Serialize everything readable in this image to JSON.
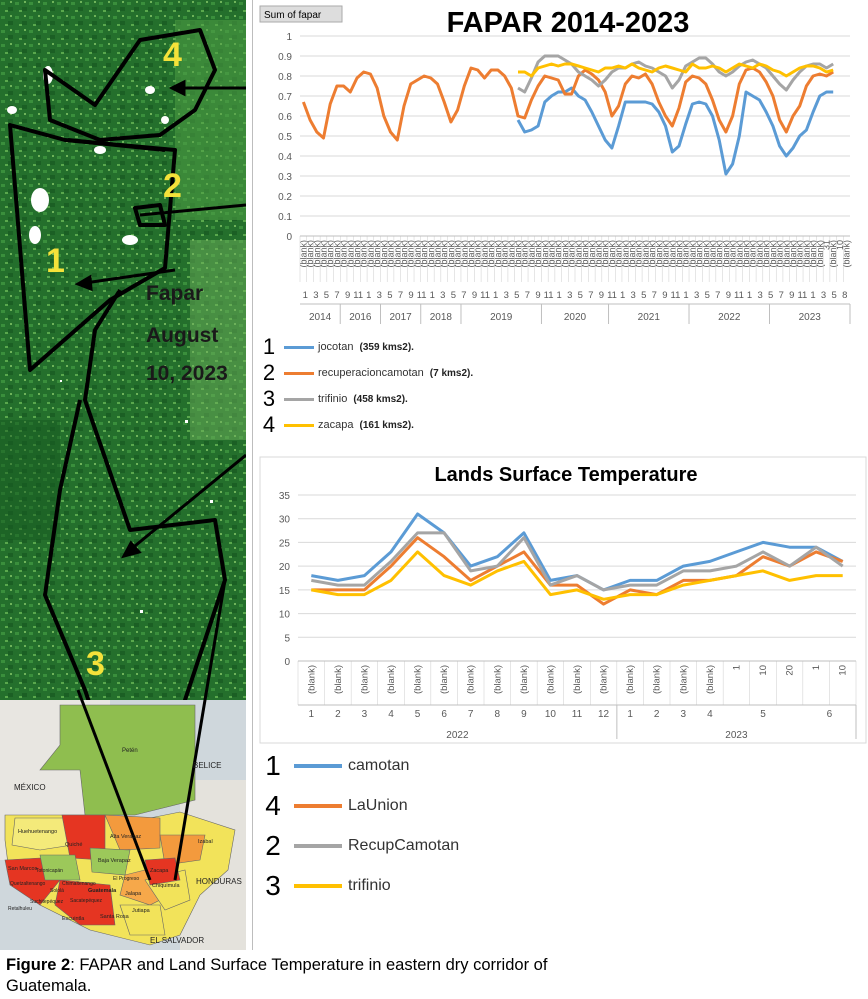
{
  "map": {
    "region_labels": [
      "1",
      "2",
      "3",
      "4"
    ],
    "annotation": [
      "Fapar",
      "August",
      "10, 2023"
    ],
    "country_labels": {
      "mexico": "MÉXICO",
      "belize": "BELICE",
      "honduras": "HONDURAS",
      "el_salvador": "EL SALVADOR"
    },
    "departments": [
      "Petén",
      "Huehuetenango",
      "Quiché",
      "Alta Verapaz",
      "Izabal",
      "Baja Verapaz",
      "San Marcos",
      "Totonicapán",
      "Quetzaltenango",
      "Chimaltenango",
      "Sololá",
      "Guatemala",
      "El Progreso",
      "Zacapa",
      "Jalapa",
      "Chiquimula",
      "Suchitepéquez",
      "Retalhuleu",
      "Sacatepéquez",
      "Escuintla",
      "Santa Rosa",
      "Jutiapa"
    ],
    "colors": {
      "veg_dark": "#1e6a28",
      "veg_mid": "#2f8a36",
      "veg_light": "#5aaa4c"
    }
  },
  "chart_data": [
    {
      "type": "line",
      "title": "FAPAR 2014-2023",
      "field_button": "Sum of fapar",
      "ylim": [
        0,
        1
      ],
      "yticks": [
        "0",
        "0.1",
        "0.2",
        "0.3",
        "0.4",
        "0.5",
        "0.6",
        "0.7",
        "0.8",
        "0.9",
        "1"
      ],
      "grid": true,
      "x_slots": 82,
      "blank_label": "(blank)",
      "day_labels": [
        {
          "slot": 78,
          "text": "31"
        },
        {
          "slot": 80,
          "text": "10"
        }
      ],
      "month_labels": [
        "1",
        "3",
        "5",
        "7",
        "9",
        "11",
        "1",
        "3",
        "5",
        "7",
        "9",
        "11",
        "1",
        "3",
        "5",
        "7",
        "9",
        "11",
        "1",
        "3",
        "5",
        "7",
        "9",
        "11",
        "1",
        "3",
        "5",
        "7",
        "9",
        "11",
        "1",
        "3",
        "5",
        "7",
        "9",
        "11",
        "1",
        "3",
        "5",
        "7",
        "9",
        "11",
        "1",
        "3",
        "5",
        "7",
        "9",
        "11",
        "1",
        "3",
        "5",
        "8"
      ],
      "years": [
        {
          "label": "2014",
          "start": 0,
          "end": 6
        },
        {
          "label": "2016",
          "start": 6,
          "end": 12
        },
        {
          "label": "2017",
          "start": 12,
          "end": 18
        },
        {
          "label": "2018",
          "start": 18,
          "end": 24
        },
        {
          "label": "2019",
          "start": 24,
          "end": 36
        },
        {
          "label": "2020",
          "start": 36,
          "end": 46
        },
        {
          "label": "2021",
          "start": 46,
          "end": 58
        },
        {
          "label": "2022",
          "start": 58,
          "end": 70
        },
        {
          "label": "2023",
          "start": 70,
          "end": 82
        }
      ],
      "series": [
        {
          "name": "jocotan",
          "color": "#5b9bd5",
          "values": [
            null,
            null,
            null,
            null,
            null,
            null,
            null,
            null,
            null,
            null,
            null,
            null,
            null,
            null,
            null,
            null,
            null,
            null,
            null,
            null,
            null,
            null,
            null,
            null,
            null,
            null,
            null,
            null,
            null,
            null,
            null,
            null,
            0.58,
            0.52,
            0.53,
            0.55,
            0.67,
            0.7,
            0.72,
            0.72,
            0.74,
            0.7,
            0.68,
            0.62,
            0.55,
            0.48,
            0.44,
            0.55,
            0.67,
            0.67,
            0.67,
            0.67,
            0.66,
            0.62,
            0.55,
            0.42,
            0.45,
            0.56,
            0.66,
            0.67,
            0.66,
            0.6,
            0.48,
            0.31,
            0.36,
            0.5,
            0.72,
            0.7,
            0.68,
            0.62,
            0.55,
            0.45,
            0.4,
            0.44,
            0.5,
            0.53,
            0.62,
            0.7,
            0.72,
            0.72,
            null,
            null
          ]
        },
        {
          "name": "recuperacioncamotan",
          "color": "#ed7d31",
          "values": [
            0.67,
            0.58,
            0.52,
            0.49,
            0.66,
            0.75,
            0.75,
            0.72,
            0.79,
            0.82,
            0.81,
            0.74,
            0.6,
            0.52,
            0.48,
            0.65,
            0.76,
            0.78,
            0.8,
            0.79,
            0.76,
            0.67,
            0.57,
            0.63,
            0.75,
            0.84,
            0.83,
            0.79,
            0.83,
            0.83,
            0.8,
            0.74,
            0.6,
            0.59,
            0.68,
            0.75,
            0.8,
            0.79,
            0.78,
            0.71,
            0.71,
            0.8,
            0.83,
            0.81,
            0.78,
            0.72,
            0.6,
            0.65,
            0.76,
            0.8,
            0.79,
            0.81,
            0.76,
            0.67,
            0.6,
            0.55,
            0.64,
            0.77,
            0.8,
            0.79,
            0.76,
            0.68,
            0.58,
            0.52,
            0.6,
            0.76,
            0.83,
            0.84,
            0.82,
            0.77,
            0.7,
            0.58,
            0.52,
            0.6,
            0.65,
            0.75,
            0.8,
            0.81,
            0.8,
            0.82,
            null,
            null
          ]
        },
        {
          "name": "trifinio",
          "color": "#a5a5a5",
          "values": [
            null,
            null,
            null,
            null,
            null,
            null,
            null,
            null,
            null,
            null,
            null,
            null,
            null,
            null,
            null,
            null,
            null,
            null,
            null,
            null,
            null,
            null,
            null,
            null,
            null,
            null,
            null,
            null,
            null,
            null,
            null,
            null,
            0.74,
            0.72,
            0.79,
            0.87,
            0.9,
            0.9,
            0.9,
            0.88,
            0.86,
            0.82,
            0.8,
            0.78,
            0.75,
            0.78,
            0.82,
            0.84,
            0.84,
            0.86,
            0.87,
            0.85,
            0.84,
            0.82,
            0.8,
            0.74,
            0.78,
            0.85,
            0.87,
            0.89,
            0.89,
            0.86,
            0.82,
            0.8,
            0.82,
            0.85,
            0.87,
            0.88,
            0.86,
            0.84,
            0.8,
            0.76,
            0.73,
            0.78,
            0.82,
            0.85,
            0.86,
            0.86,
            0.84,
            0.86,
            null,
            null
          ]
        },
        {
          "name": "zacapa",
          "color": "#ffc000",
          "values": [
            null,
            null,
            null,
            null,
            null,
            null,
            null,
            null,
            null,
            null,
            null,
            null,
            null,
            null,
            null,
            null,
            null,
            null,
            null,
            null,
            null,
            null,
            null,
            null,
            null,
            null,
            null,
            null,
            null,
            null,
            null,
            null,
            0.82,
            0.82,
            0.8,
            0.84,
            0.85,
            0.86,
            0.85,
            0.86,
            0.86,
            0.85,
            0.84,
            0.83,
            0.82,
            0.84,
            0.84,
            0.85,
            0.84,
            0.86,
            0.84,
            0.83,
            0.82,
            0.84,
            0.85,
            0.84,
            0.83,
            0.82,
            0.86,
            0.84,
            0.84,
            0.85,
            0.84,
            0.82,
            0.84,
            0.86,
            0.85,
            0.84,
            0.86,
            0.85,
            0.83,
            0.82,
            0.8,
            0.82,
            0.84,
            0.85,
            0.85,
            0.84,
            0.82,
            0.83,
            null,
            null
          ]
        }
      ]
    },
    {
      "type": "line",
      "title": "Lands Surface Temperature",
      "ylim": [
        0,
        35
      ],
      "yticks": [
        "0",
        "5",
        "10",
        "15",
        "20",
        "25",
        "30",
        "35"
      ],
      "grid": true,
      "blank_label": "(blank)",
      "x_count": 21,
      "slot_labels": [
        "(blank)",
        "(blank)",
        "(blank)",
        "(blank)",
        "(blank)",
        "(blank)",
        "(blank)",
        "(blank)",
        "(blank)",
        "(blank)",
        "(blank)",
        "(blank)",
        "(blank)",
        "(blank)",
        "(blank)",
        "(blank)",
        "1",
        "10",
        "20",
        "1",
        "10"
      ],
      "month_labels": [
        {
          "text": "1",
          "start": 0,
          "end": 1
        },
        {
          "text": "2",
          "start": 1,
          "end": 2
        },
        {
          "text": "3",
          "start": 2,
          "end": 3
        },
        {
          "text": "4",
          "start": 3,
          "end": 4
        },
        {
          "text": "5",
          "start": 4,
          "end": 5
        },
        {
          "text": "6",
          "start": 5,
          "end": 6
        },
        {
          "text": "7",
          "start": 6,
          "end": 7
        },
        {
          "text": "8",
          "start": 7,
          "end": 8
        },
        {
          "text": "9",
          "start": 8,
          "end": 9
        },
        {
          "text": "10",
          "start": 9,
          "end": 10
        },
        {
          "text": "11",
          "start": 10,
          "end": 11
        },
        {
          "text": "12",
          "start": 11,
          "end": 12
        },
        {
          "text": "1",
          "start": 12,
          "end": 13
        },
        {
          "text": "2",
          "start": 13,
          "end": 14
        },
        {
          "text": "3",
          "start": 14,
          "end": 15
        },
        {
          "text": "4",
          "start": 15,
          "end": 16
        },
        {
          "text": "5",
          "start": 16,
          "end": 19
        },
        {
          "text": "6",
          "start": 19,
          "end": 21
        }
      ],
      "years": [
        {
          "label": "2022",
          "start": 0,
          "end": 12
        },
        {
          "label": "2023",
          "start": 12,
          "end": 21
        }
      ],
      "series": [
        {
          "name": "camotan",
          "color": "#5b9bd5",
          "values": [
            18,
            17,
            18,
            23,
            31,
            27,
            20,
            22,
            27,
            17,
            18,
            15,
            17,
            17,
            20,
            21,
            23,
            25,
            24,
            24,
            21
          ]
        },
        {
          "name": "LaUnion",
          "color": "#ed7d31",
          "values": [
            15,
            15,
            15,
            20,
            26,
            22,
            17,
            20,
            23,
            16,
            16,
            12,
            15,
            14,
            17,
            17,
            18,
            22,
            20,
            23,
            21
          ]
        },
        {
          "name": "RecupCamotan",
          "color": "#a5a5a5",
          "values": [
            17,
            16,
            16,
            21,
            27,
            27,
            19,
            20,
            26,
            16,
            18,
            15,
            16,
            16,
            19,
            19,
            20,
            23,
            20,
            24,
            20
          ]
        },
        {
          "name": "trifinio",
          "color": "#ffc000",
          "values": [
            15,
            14,
            14,
            17,
            23,
            18,
            16,
            19,
            21,
            14,
            15,
            13,
            14,
            14,
            16,
            17,
            18,
            19,
            17,
            18,
            18
          ]
        }
      ]
    }
  ],
  "fapar_legend": [
    {
      "num": "1",
      "name": "jocotan",
      "area": "(359 kms2).",
      "color": "#5b9bd5"
    },
    {
      "num": "2",
      "name": "recuperacioncamotan",
      "area": "(7 kms2).",
      "color": "#ed7d31"
    },
    {
      "num": "3",
      "name": "trifinio",
      "area": "(458 kms2).",
      "color": "#a5a5a5"
    },
    {
      "num": "4",
      "name": "zacapa",
      "area": "(161 kms2).",
      "color": "#ffc000"
    }
  ],
  "lst_legend": [
    {
      "num": "1",
      "name": "camotan",
      "color": "#5b9bd5"
    },
    {
      "num": "4",
      "name": "LaUnion",
      "color": "#ed7d31"
    },
    {
      "num": "2",
      "name": "RecupCamotan",
      "color": "#a5a5a5"
    },
    {
      "num": "3",
      "name": "trifinio",
      "color": "#ffc000"
    }
  ],
  "caption": {
    "label": "Figure 2",
    "text": ": FAPAR and Land Surface Temperature in eastern dry corridor of Guatemala."
  }
}
